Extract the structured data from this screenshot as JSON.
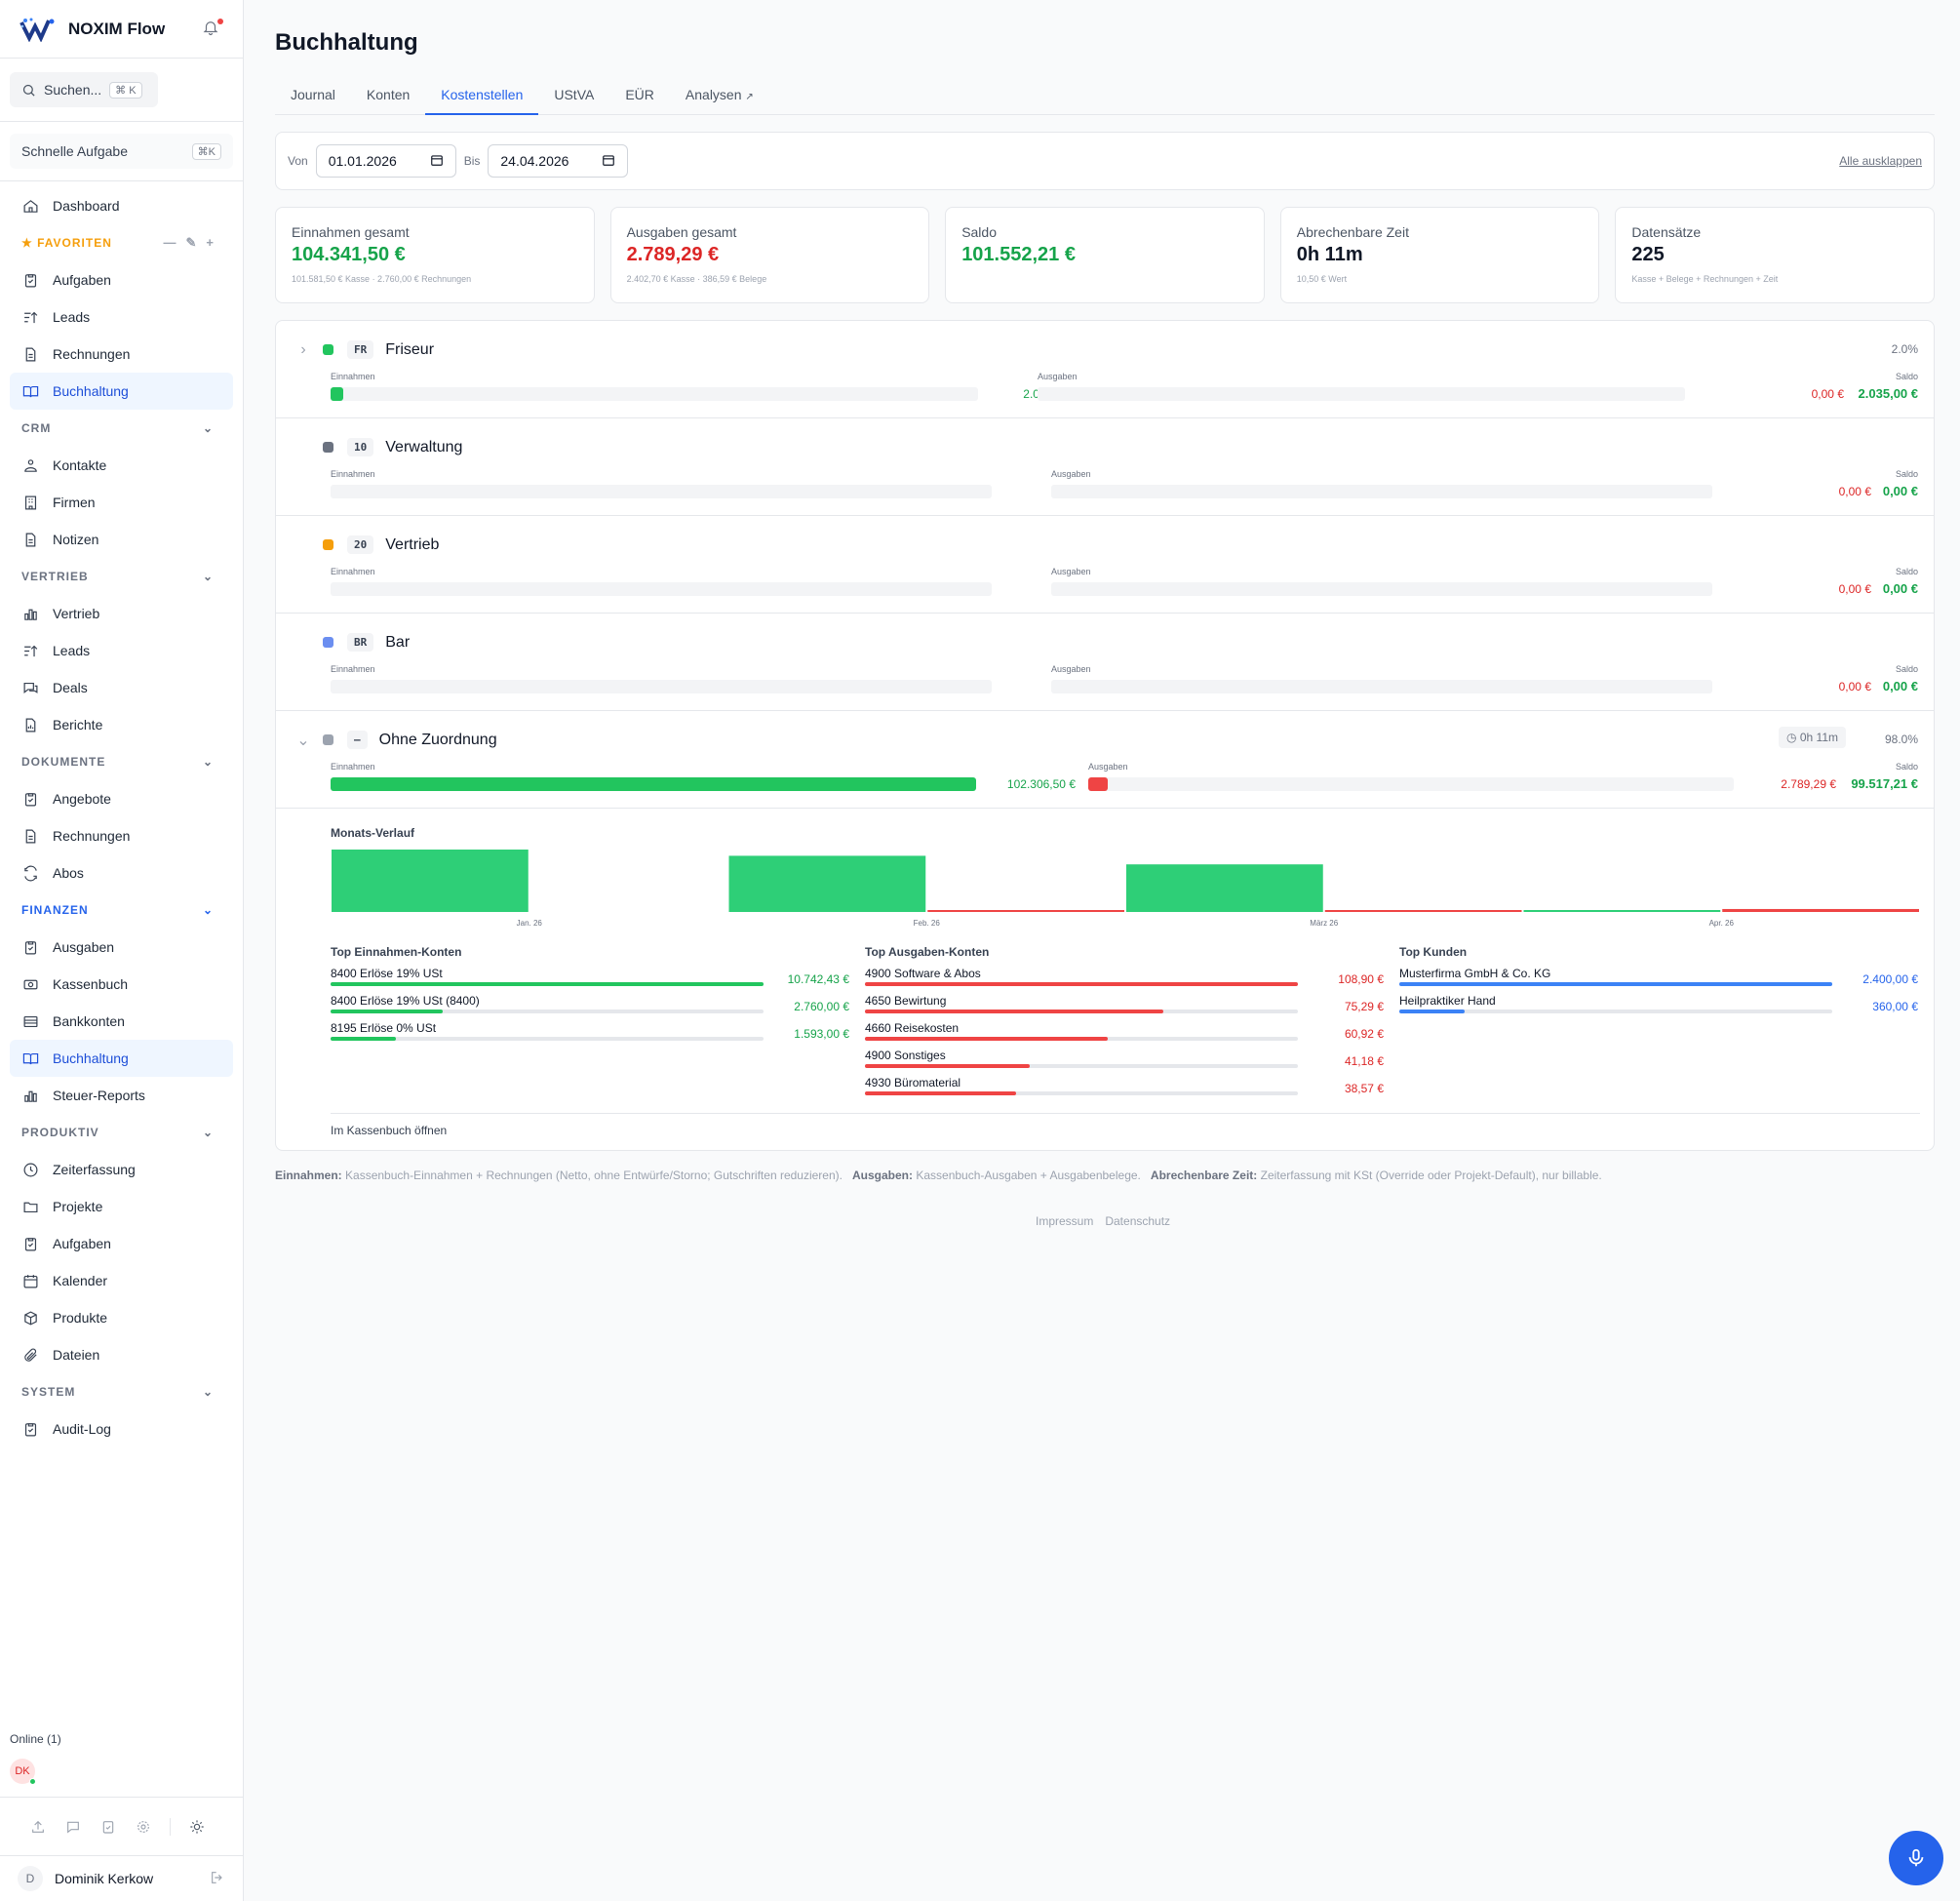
{
  "app": {
    "name": "NOXIM Flow"
  },
  "search": {
    "placeholder": "Suchen...",
    "shortcut": "⌘ K"
  },
  "quick_task": {
    "label": "Schnelle Aufgabe",
    "shortcut": "⌘K"
  },
  "sidebar": {
    "dashboard": "Dashboard",
    "favorites_title": "★ FAVORITEN",
    "favorites": [
      "Aufgaben",
      "Leads",
      "Rechnungen",
      "Buchhaltung"
    ],
    "crm_title": "CRM",
    "crm": [
      "Kontakte",
      "Firmen",
      "Notizen"
    ],
    "vertrieb_title": "VERTRIEB",
    "vertrieb": [
      "Vertrieb",
      "Leads",
      "Deals",
      "Berichte"
    ],
    "dokumente_title": "DOKUMENTE",
    "dokumente": [
      "Angebote",
      "Rechnungen",
      "Abos"
    ],
    "finanzen_title": "FINANZEN",
    "finanzen": [
      "Ausgaben",
      "Kassenbuch",
      "Bankkonten",
      "Buchhaltung",
      "Steuer-Reports"
    ],
    "produktiv_title": "PRODUKTIV",
    "produktiv": [
      "Zeiterfassung",
      "Projekte",
      "Aufgaben",
      "Kalender",
      "Produkte",
      "Dateien"
    ],
    "system_title": "SYSTEM",
    "system": [
      "Audit-Log"
    ],
    "online": "Online (1)",
    "online_initials": "DK",
    "user_initial": "D",
    "user_name": "Dominik Kerkow"
  },
  "page": {
    "title": "Buchhaltung"
  },
  "tabs": [
    "Journal",
    "Konten",
    "Kostenstellen",
    "UStVA",
    "EÜR",
    "Analysen"
  ],
  "filter": {
    "von_label": "Von",
    "von": "01.01.2026",
    "bis_label": "Bis",
    "bis": "24.04.2026",
    "expand_all": "Alle ausklappen"
  },
  "kpis": [
    {
      "label": "Einnahmen gesamt",
      "value": "104.341,50 €",
      "sub": "101.581,50 € Kasse · 2.760,00 € Rechnungen",
      "color": "#16a34a"
    },
    {
      "label": "Ausgaben gesamt",
      "value": "2.789,29 €",
      "sub": "2.402,70 € Kasse · 386,59 € Belege",
      "color": "#dc2626"
    },
    {
      "label": "Saldo",
      "value": "101.552,21 €",
      "sub": "",
      "color": "#16a34a"
    },
    {
      "label": "Abrechenbare Zeit",
      "value": "0h 11m",
      "sub": "10,50 € Wert",
      "color": "#111827"
    },
    {
      "label": "Datensätze",
      "value": "225",
      "sub": "Kasse + Belege + Rechnungen + Zeit",
      "color": "#111827"
    }
  ],
  "labels": {
    "einnahmen": "Einnahmen",
    "ausgaben": "Ausgaben",
    "saldo": "Saldo"
  },
  "cost_centers": [
    {
      "code": "FR",
      "name": "Friseur",
      "color": "#22c55e",
      "pct": "2.0%",
      "time": "",
      "income": "2.035,00 €",
      "expense": "0,00 €",
      "saldo": "2.035,00 €",
      "income_frac": 0.02,
      "expense_frac": 0
    },
    {
      "code": "10",
      "name": "Verwaltung",
      "color": "#6b7280",
      "pct": "",
      "time": "",
      "income": "0,00 €",
      "expense": "0,00 €",
      "saldo": "0,00 €",
      "income_frac": 0,
      "expense_frac": 0
    },
    {
      "code": "20",
      "name": "Vertrieb",
      "color": "#f59e0b",
      "pct": "",
      "time": "",
      "income": "0,00 €",
      "expense": "0,00 €",
      "saldo": "0,00 €",
      "income_frac": 0,
      "expense_frac": 0
    },
    {
      "code": "BR",
      "name": "Bar",
      "color": "#6b8ef0",
      "pct": "",
      "time": "",
      "income": "0,00 €",
      "expense": "0,00 €",
      "saldo": "0,00 €",
      "income_frac": 0,
      "expense_frac": 0
    },
    {
      "code": "–",
      "name": "Ohne Zuordnung",
      "color": "#9ca3af",
      "pct": "98.0%",
      "time": "◷ 0h 11m",
      "income": "102.306,50 €",
      "expense": "2.789,29 €",
      "saldo": "99.517,21 €",
      "income_frac": 1.0,
      "expense_frac": 0.03
    }
  ],
  "monthly": {
    "title": "Monats-Verlauf",
    "months": [
      "Jan. 26",
      "Feb. 26",
      "März 26",
      "Apr. 26"
    ]
  },
  "chart_data": {
    "type": "bar",
    "categories": [
      "Jan. 26",
      "Feb. 26",
      "März 26",
      "Apr. 26"
    ],
    "series": [
      {
        "name": "Einnahmen",
        "values": [
          40000,
          36000,
          30500,
          200
        ],
        "color": "#2ecf77"
      },
      {
        "name": "Ausgaben",
        "values": [
          0,
          400,
          400,
          1900
        ],
        "color": "#ef4444"
      }
    ],
    "title": "Monats-Verlauf"
  },
  "top_income": {
    "title": "Top Einnahmen-Konten",
    "items": [
      {
        "name": "8400 Erlöse 19% USt",
        "value": "10.742,43 €",
        "frac": 1.0
      },
      {
        "name": "8400 Erlöse 19% USt (8400)",
        "value": "2.760,00 €",
        "frac": 0.26
      },
      {
        "name": "8195 Erlöse 0% USt",
        "value": "1.593,00 €",
        "frac": 0.15
      }
    ]
  },
  "top_expense": {
    "title": "Top Ausgaben-Konten",
    "items": [
      {
        "name": "4900 Software & Abos",
        "value": "108,90 €",
        "frac": 1.0
      },
      {
        "name": "4650 Bewirtung",
        "value": "75,29 €",
        "frac": 0.69
      },
      {
        "name": "4660 Reisekosten",
        "value": "60,92 €",
        "frac": 0.56
      },
      {
        "name": "4900 Sonstiges",
        "value": "41,18 €",
        "frac": 0.38
      },
      {
        "name": "4930 Büromaterial",
        "value": "38,57 €",
        "frac": 0.35
      }
    ]
  },
  "top_customers": {
    "title": "Top Kunden",
    "items": [
      {
        "name": "Musterfirma GmbH & Co. KG",
        "value": "2.400,00 €",
        "frac": 1.0
      },
      {
        "name": "Heilpraktiker Hand",
        "value": "360,00 €",
        "frac": 0.15
      }
    ]
  },
  "open_kassenbuch": "Im Kassenbuch öffnen",
  "note": {
    "einnahmen_label": "Einnahmen:",
    "einnahmen_text": "Kassenbuch-Einnahmen + Rechnungen (Netto, ohne Entwürfe/Storno; Gutschriften reduzieren).",
    "ausgaben_label": "Ausgaben:",
    "ausgaben_text": "Kassenbuch-Ausgaben + Ausgabenbelege.",
    "zeit_label": "Abrechenbare Zeit:",
    "zeit_text": "Zeiterfassung mit KSt (Override oder Projekt-Default), nur billable."
  },
  "footer": {
    "impressum": "Impressum",
    "datenschutz": "Datenschutz"
  },
  "colors": {
    "accent": "#2563eb",
    "income": "#16a34a",
    "expense": "#dc2626"
  }
}
